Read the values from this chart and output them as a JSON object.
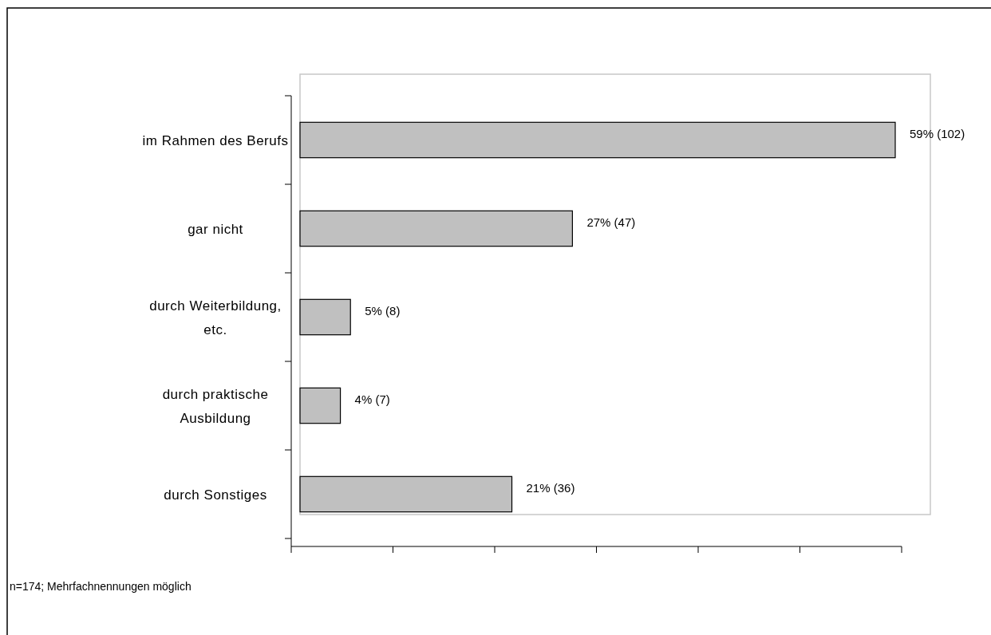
{
  "chart_data": {
    "type": "bar",
    "orientation": "horizontal",
    "categories": [
      "im Rahmen des Berufs",
      "gar nicht",
      "durch Weiterbildung, etc.",
      "durch praktische Ausbildung",
      "durch Sonstiges"
    ],
    "values": [
      59,
      27,
      5,
      4,
      21
    ],
    "value_labels": [
      "59% (102)",
      "27% (47)",
      "5% (8)",
      "4% (7)",
      "21% (36)"
    ],
    "color": "#c0c0c0",
    "tick_labels": "y",
    "annotations": [
      "n=174; Mehrfachnennungen möglich"
    ]
  }
}
